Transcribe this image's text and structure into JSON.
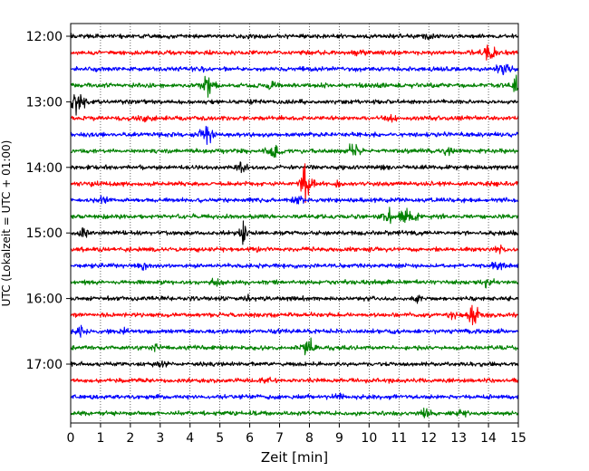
{
  "chart_data": {
    "type": "line",
    "title": "",
    "xlabel": "Zeit  [min]",
    "ylabel": "UTC (Lokalzeit = UTC + 01:00)",
    "xlim": [
      0,
      15
    ],
    "xticks": [
      0,
      1,
      2,
      3,
      4,
      5,
      6,
      7,
      8,
      9,
      10,
      11,
      12,
      13,
      14,
      15
    ],
    "xtick_labels": [
      "0",
      "1",
      "2",
      "3",
      "4",
      "5",
      "6",
      "7",
      "8",
      "9",
      "10",
      "11",
      "12",
      "13",
      "14",
      "15"
    ],
    "yticks": [
      {
        "row": 0,
        "label": "12:00"
      },
      {
        "row": 4,
        "label": "13:00"
      },
      {
        "row": 8,
        "label": "14:00"
      },
      {
        "row": 12,
        "label": "15:00"
      },
      {
        "row": 16,
        "label": "16:00"
      },
      {
        "row": 20,
        "label": "17:00"
      }
    ],
    "grid": "vertical dotted at each minute",
    "line_colors": [
      "#000000",
      "#ff0000",
      "#0000ff",
      "#008000"
    ],
    "traces": [
      {
        "start": "12:00",
        "events": [
          [
            12.0,
            0.25
          ]
        ]
      },
      {
        "start": "12:15",
        "events": [
          [
            14.0,
            0.6
          ],
          [
            14.1,
            0.4
          ],
          [
            9.6,
            0.25
          ]
        ]
      },
      {
        "start": "12:30",
        "events": [
          [
            14.5,
            0.8
          ],
          [
            4.4,
            0.25
          ]
        ]
      },
      {
        "start": "12:45",
        "events": [
          [
            4.6,
            1.3
          ],
          [
            6.8,
            0.3
          ],
          [
            10.4,
            0.3
          ],
          [
            15.0,
            1.2
          ]
        ]
      },
      {
        "start": "13:00",
        "events": [
          [
            0.2,
            1.5
          ],
          [
            0.5,
            0.3
          ]
        ]
      },
      {
        "start": "13:15",
        "events": [
          [
            2.5,
            0.4
          ],
          [
            10.7,
            0.3
          ]
        ]
      },
      {
        "start": "13:30",
        "events": [
          [
            4.5,
            0.8
          ],
          [
            4.7,
            0.5
          ]
        ]
      },
      {
        "start": "13:45",
        "events": [
          [
            6.8,
            1.1
          ],
          [
            9.5,
            1.2
          ],
          [
            12.6,
            0.3
          ]
        ]
      },
      {
        "start": "14:00",
        "events": [
          [
            5.7,
            0.5
          ],
          [
            10.4,
            0.2
          ]
        ]
      },
      {
        "start": "14:15",
        "events": [
          [
            7.9,
            2.3
          ],
          [
            1.0,
            0.3
          ],
          [
            9.0,
            0.3
          ]
        ]
      },
      {
        "start": "14:30",
        "events": [
          [
            1.1,
            0.3
          ],
          [
            7.6,
            0.3
          ]
        ]
      },
      {
        "start": "14:45",
        "events": [
          [
            10.6,
            0.9
          ],
          [
            11.2,
            1.0
          ],
          [
            11.6,
            0.4
          ]
        ]
      },
      {
        "start": "15:00",
        "events": [
          [
            5.8,
            1.0
          ],
          [
            0.4,
            0.4
          ]
        ]
      },
      {
        "start": "15:15",
        "events": [
          [
            6.3,
            0.3
          ],
          [
            14.4,
            0.3
          ]
        ]
      },
      {
        "start": "15:30",
        "events": [
          [
            14.3,
            0.4
          ],
          [
            2.4,
            0.3
          ]
        ]
      },
      {
        "start": "15:45",
        "events": [
          [
            14.0,
            0.5
          ],
          [
            4.9,
            0.3
          ]
        ]
      },
      {
        "start": "16:00",
        "events": [
          [
            6.0,
            0.3
          ],
          [
            11.6,
            0.3
          ]
        ]
      },
      {
        "start": "16:15",
        "events": [
          [
            13.5,
            1.0
          ],
          [
            12.8,
            0.3
          ]
        ]
      },
      {
        "start": "16:30",
        "events": [
          [
            0.3,
            0.6
          ],
          [
            1.8,
            0.2
          ]
        ]
      },
      {
        "start": "16:45",
        "events": [
          [
            2.8,
            0.4
          ],
          [
            7.9,
            0.7
          ],
          [
            8.0,
            0.5
          ]
        ]
      },
      {
        "start": "17:00",
        "events": [
          [
            3.0,
            0.2
          ]
        ]
      },
      {
        "start": "17:15",
        "events": [
          [
            6.6,
            0.2
          ]
        ]
      },
      {
        "start": "17:30",
        "events": [
          [
            9.0,
            0.3
          ],
          [
            14.0,
            0.2
          ]
        ]
      },
      {
        "start": "17:45",
        "events": [
          [
            11.9,
            0.5
          ],
          [
            13.2,
            0.3
          ]
        ]
      }
    ]
  }
}
